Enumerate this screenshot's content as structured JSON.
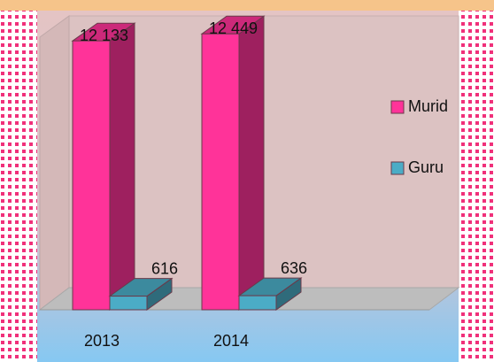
{
  "chart_data": {
    "type": "bar3d",
    "categories": [
      "2013",
      "2014"
    ],
    "series": [
      {
        "name": "Murid",
        "color": "#ff3399",
        "values": [
          12133,
          12449
        ],
        "value_labels": [
          "12 133",
          "12 449"
        ]
      },
      {
        "name": "Guru",
        "color": "#4bacc6",
        "values": [
          616,
          636
        ]
      }
    ],
    "ylim": [
      0,
      12500
    ],
    "legend": "right"
  }
}
